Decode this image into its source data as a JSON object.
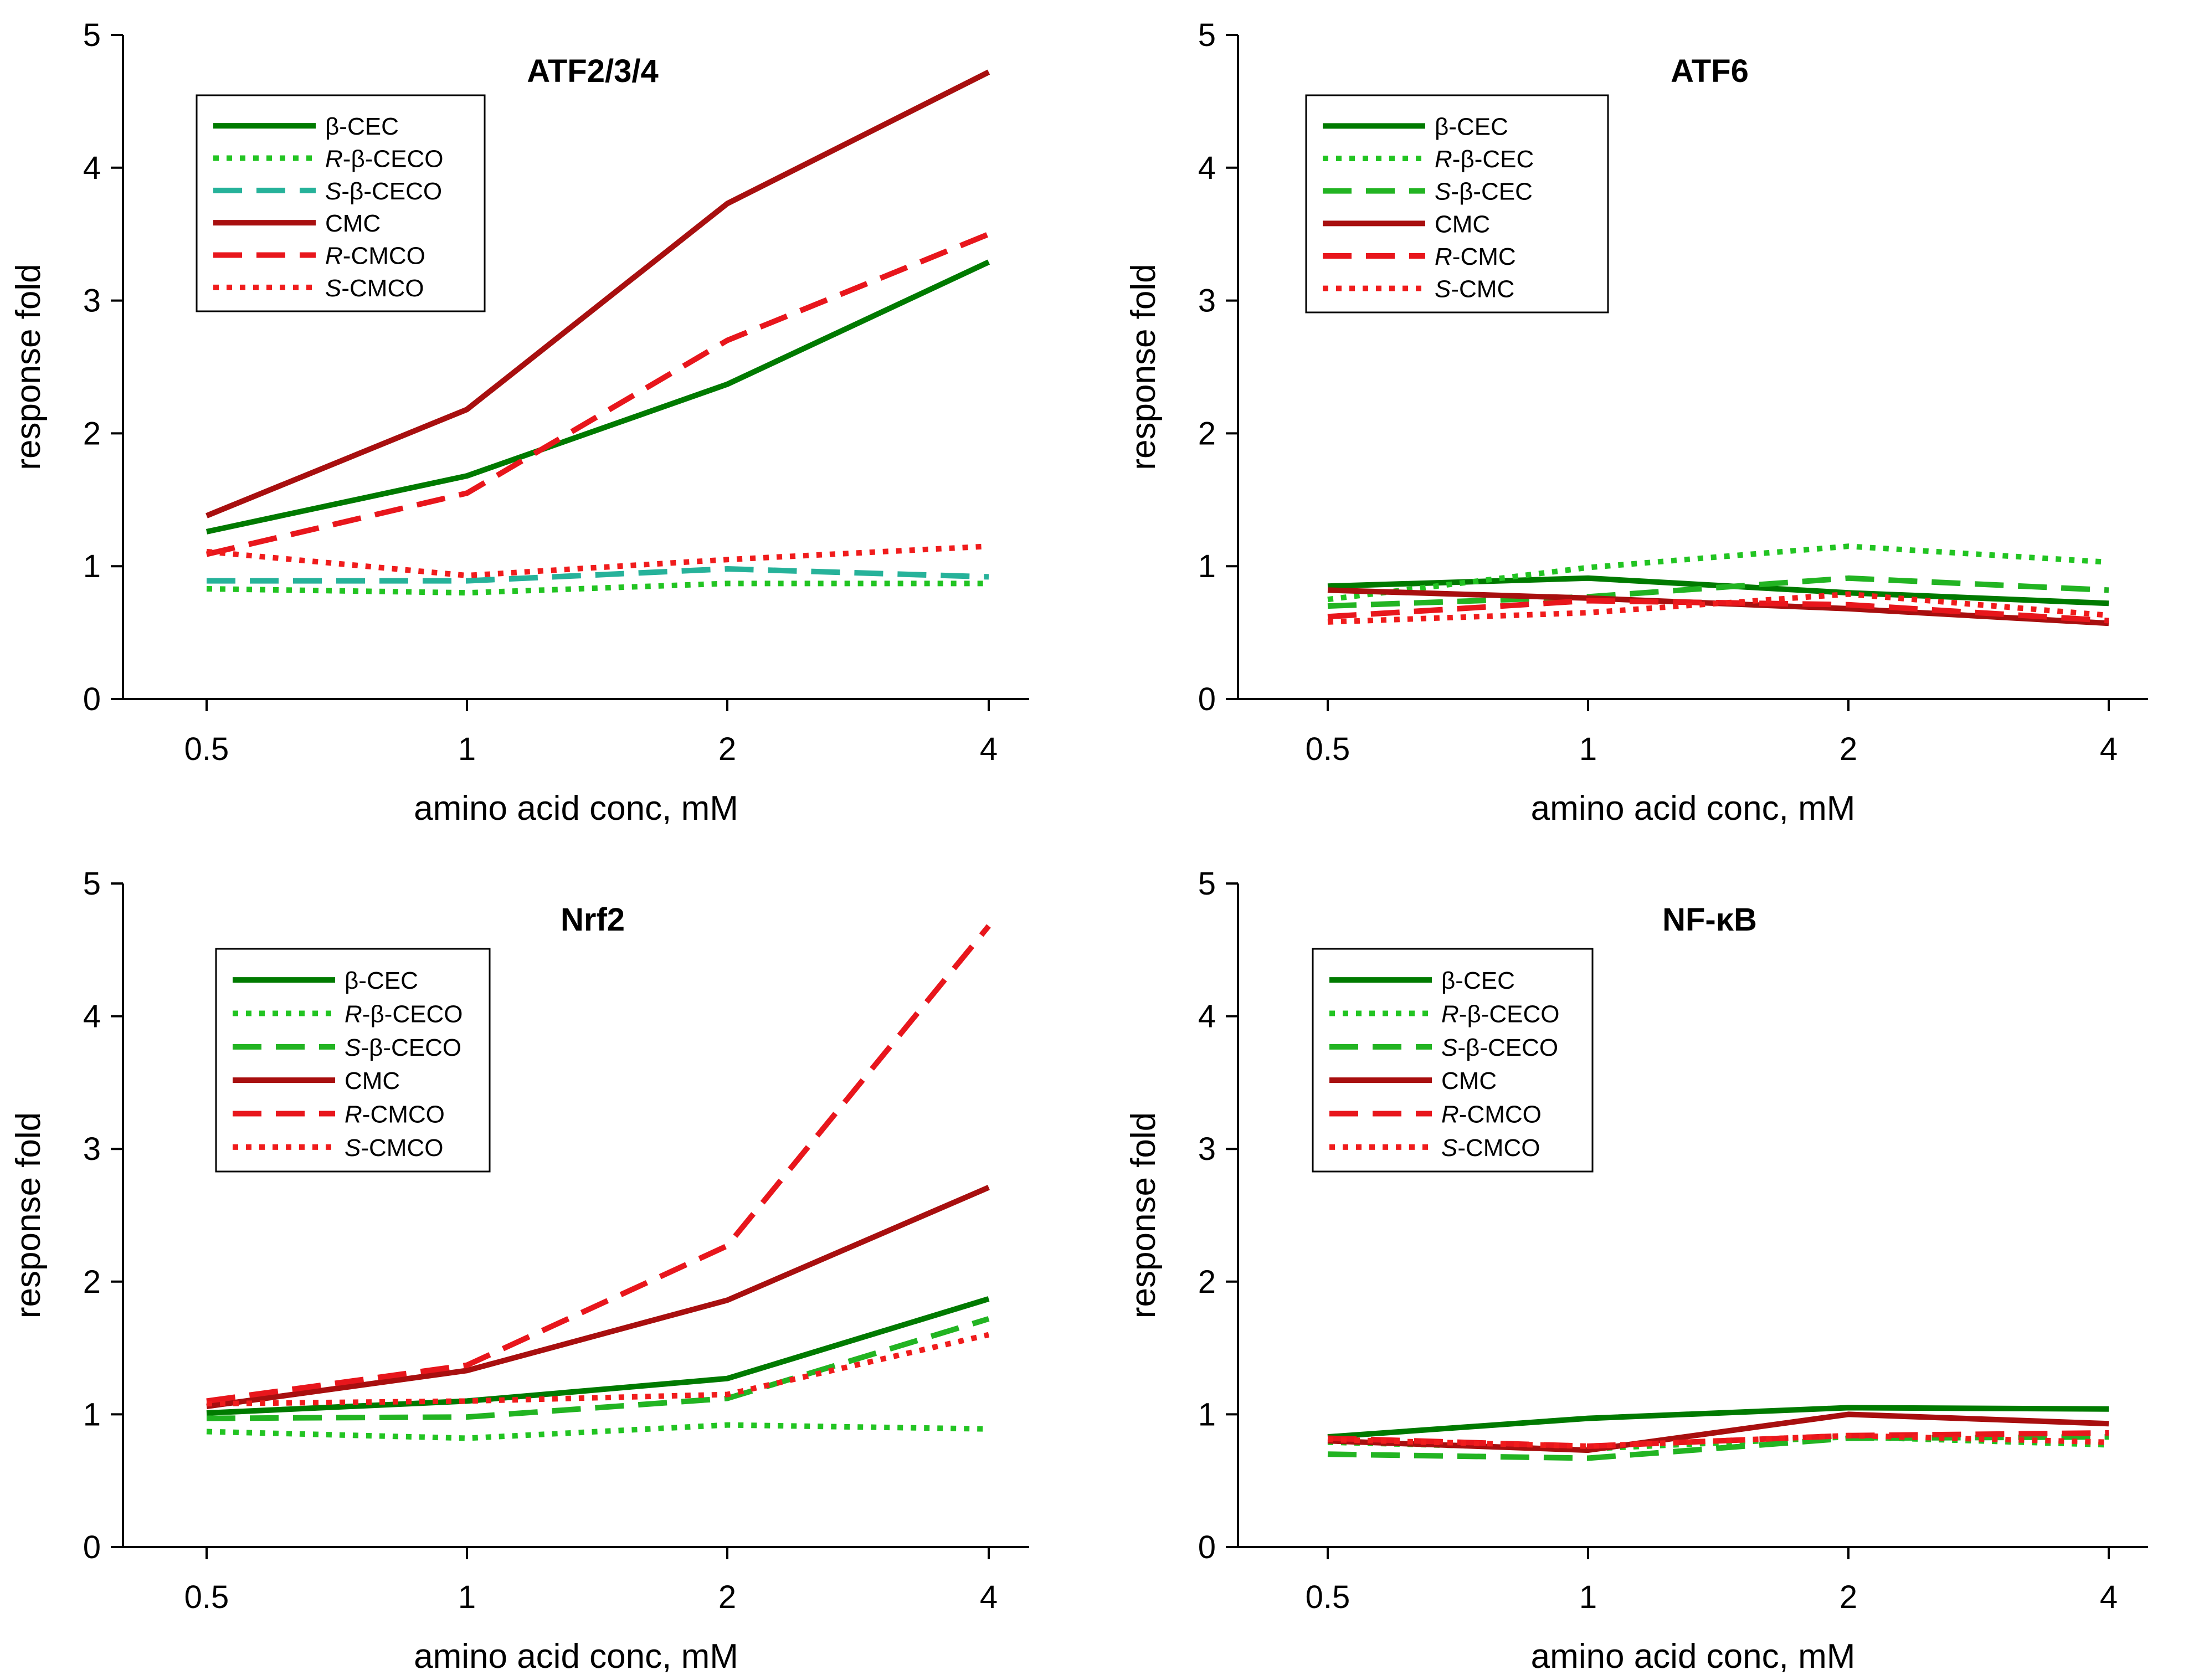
{
  "chart_data": [
    {
      "type": "line",
      "title": "ATF2/3/4",
      "xlabel": "amino acid conc, mM",
      "ylabel": "response fold",
      "categories": [
        "0.5",
        "1",
        "2",
        "4"
      ],
      "ylim": [
        0,
        5
      ],
      "yticks": [
        "0",
        "1",
        "2",
        "3",
        "4",
        "5"
      ],
      "legend_position": "top-left",
      "series": [
        {
          "name": "β-CEC",
          "prefix": "",
          "suffix": "β-CEC",
          "color": "#007a00",
          "style": "solid",
          "values": [
            1.26,
            1.68,
            2.37,
            3.29
          ]
        },
        {
          "name": "R-β-CECO",
          "prefix": "R-",
          "suffix": "β-CECO",
          "color": "#22c422",
          "style": "dotted",
          "values": [
            0.83,
            0.8,
            0.87,
            0.87
          ]
        },
        {
          "name": "S-β-CECO",
          "prefix": "S-",
          "suffix": "β-CECO",
          "color": "#26b29a",
          "style": "dashed",
          "values": [
            0.89,
            0.89,
            0.98,
            0.92
          ]
        },
        {
          "name": "CMC",
          "prefix": "",
          "suffix": "CMC",
          "color": "#a80f0f",
          "style": "solid",
          "values": [
            1.38,
            2.18,
            3.73,
            4.72
          ]
        },
        {
          "name": "R-CMCO",
          "prefix": "R-",
          "suffix": "CMCO",
          "color": "#e8161c",
          "style": "dashed",
          "values": [
            1.09,
            1.55,
            2.7,
            3.5
          ]
        },
        {
          "name": "S-CMCO",
          "prefix": "S-",
          "suffix": "CMCO",
          "color": "#f01c1c",
          "style": "dotted",
          "values": [
            1.11,
            0.93,
            1.05,
            1.15
          ]
        }
      ]
    },
    {
      "type": "line",
      "title": "ATF6",
      "xlabel": "amino acid conc, mM",
      "ylabel": "response fold",
      "categories": [
        "0.5",
        "1",
        "2",
        "4"
      ],
      "ylim": [
        0,
        5
      ],
      "yticks": [
        "0",
        "1",
        "2",
        "3",
        "4",
        "5"
      ],
      "legend_position": "top-left",
      "series": [
        {
          "name": "β-CEC",
          "prefix": "",
          "suffix": "β-CEC",
          "color": "#007a00",
          "style": "solid",
          "values": [
            0.85,
            0.91,
            0.8,
            0.72
          ]
        },
        {
          "name": "R-β-CEC",
          "prefix": "R-",
          "suffix": "β-CEC",
          "color": "#22c422",
          "style": "dotted",
          "values": [
            0.75,
            0.99,
            1.15,
            1.03
          ]
        },
        {
          "name": "S-β-CEC",
          "prefix": "S-",
          "suffix": "β-CEC",
          "color": "#22b422",
          "style": "dashed",
          "values": [
            0.7,
            0.77,
            0.91,
            0.82
          ]
        },
        {
          "name": "CMC",
          "prefix": "",
          "suffix": "CMC",
          "color": "#a80f0f",
          "style": "solid",
          "values": [
            0.82,
            0.76,
            0.68,
            0.57
          ]
        },
        {
          "name": "R-CMC",
          "prefix": "R-",
          "suffix": "CMC",
          "color": "#e8161c",
          "style": "dashed",
          "values": [
            0.62,
            0.74,
            0.71,
            0.59
          ]
        },
        {
          "name": "S-CMC",
          "prefix": "S-",
          "suffix": "CMC",
          "color": "#f01c1c",
          "style": "dotted",
          "values": [
            0.58,
            0.65,
            0.79,
            0.63
          ]
        }
      ]
    },
    {
      "type": "line",
      "title": "Nrf2",
      "xlabel": "amino acid conc, mM",
      "ylabel": "response fold",
      "categories": [
        "0.5",
        "1",
        "2",
        "4"
      ],
      "ylim": [
        0,
        5
      ],
      "yticks": [
        "0",
        "1",
        "2",
        "3",
        "4",
        "5"
      ],
      "legend_position": "top-left",
      "series": [
        {
          "name": "β-CEC",
          "prefix": "",
          "suffix": "β-CEC",
          "color": "#007a00",
          "style": "solid",
          "values": [
            1.01,
            1.1,
            1.27,
            1.87
          ]
        },
        {
          "name": "R-β-CECO",
          "prefix": "R-",
          "suffix": "β-CECO",
          "color": "#22c422",
          "style": "dotted",
          "values": [
            0.87,
            0.82,
            0.92,
            0.89
          ]
        },
        {
          "name": "S-β-CECO",
          "prefix": "S-",
          "suffix": "β-CECO",
          "color": "#22b422",
          "style": "dashed",
          "values": [
            0.97,
            0.98,
            1.12,
            1.72
          ]
        },
        {
          "name": "CMC",
          "prefix": "",
          "suffix": "CMC",
          "color": "#a80f0f",
          "style": "solid",
          "values": [
            1.06,
            1.33,
            1.86,
            2.71
          ]
        },
        {
          "name": "R-CMCO",
          "prefix": "R-",
          "suffix": "CMCO",
          "color": "#e8161c",
          "style": "dashed",
          "values": [
            1.1,
            1.37,
            2.27,
            4.68
          ]
        },
        {
          "name": "S-CMCO",
          "prefix": "S-",
          "suffix": "CMCO",
          "color": "#f01c1c",
          "style": "dotted",
          "values": [
            1.08,
            1.1,
            1.15,
            1.6
          ]
        }
      ]
    },
    {
      "type": "line",
      "title": "NF-κB",
      "xlabel": "amino acid conc, mM",
      "ylabel": "response fold",
      "categories": [
        "0.5",
        "1",
        "2",
        "4"
      ],
      "ylim": [
        0,
        5
      ],
      "yticks": [
        "0",
        "1",
        "2",
        "3",
        "4",
        "5"
      ],
      "legend_position": "top-left",
      "series": [
        {
          "name": "β-CEC",
          "prefix": "",
          "suffix": "β-CEC",
          "color": "#007a00",
          "style": "solid",
          "values": [
            0.83,
            0.97,
            1.05,
            1.04
          ]
        },
        {
          "name": "R-β-CECO",
          "prefix": "R-",
          "suffix": "β-CECO",
          "color": "#22c422",
          "style": "dotted",
          "values": [
            0.79,
            0.74,
            0.83,
            0.77
          ]
        },
        {
          "name": "S-β-CECO",
          "prefix": "S-",
          "suffix": "β-CECO",
          "color": "#22b422",
          "style": "dashed",
          "values": [
            0.7,
            0.67,
            0.82,
            0.83
          ]
        },
        {
          "name": "CMC",
          "prefix": "",
          "suffix": "CMC",
          "color": "#a80f0f",
          "style": "solid",
          "values": [
            0.8,
            0.73,
            1.0,
            0.93
          ]
        },
        {
          "name": "R-CMCO",
          "prefix": "R-",
          "suffix": "CMCO",
          "color": "#e8161c",
          "style": "dashed",
          "values": [
            0.82,
            0.76,
            0.84,
            0.86
          ]
        },
        {
          "name": "S-CMCO",
          "prefix": "S-",
          "suffix": "CMCO",
          "color": "#f01c1c",
          "style": "dotted",
          "values": [
            0.81,
            0.76,
            0.84,
            0.79
          ]
        }
      ]
    }
  ]
}
